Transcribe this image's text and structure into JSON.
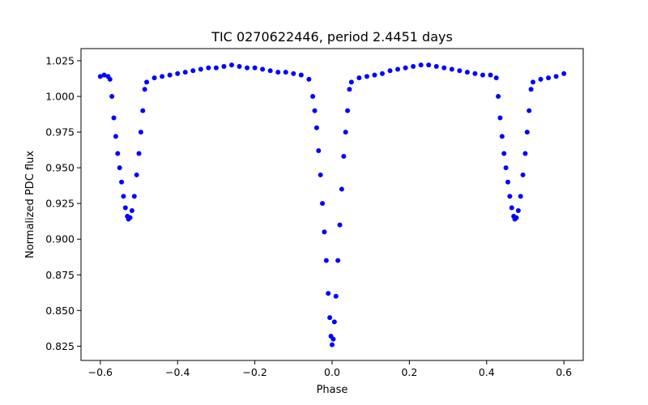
{
  "chart_data": {
    "type": "scatter",
    "title": "TIC 0270622446, period 2.4451 days",
    "xlabel": "Phase",
    "ylabel": "Normalized PDC flux",
    "xlim": [
      -0.65,
      0.65
    ],
    "ylim": [
      0.815,
      1.0335
    ],
    "x_ticks": [
      -0.6,
      -0.4,
      -0.2,
      0.0,
      0.2,
      0.4,
      0.6
    ],
    "x_tick_labels": [
      "−0.6",
      "−0.4",
      "−0.2",
      "0.0",
      "0.2",
      "0.4",
      "0.6"
    ],
    "y_ticks": [
      0.825,
      0.85,
      0.875,
      0.9,
      0.925,
      0.95,
      0.975,
      1.0,
      1.025
    ],
    "y_tick_labels": [
      "0.825",
      "0.850",
      "0.875",
      "0.900",
      "0.925",
      "0.950",
      "0.975",
      "1.000",
      "1.025"
    ],
    "grid": false,
    "marker_color": "#0000ff",
    "series": [
      {
        "points": [
          [
            -0.6,
            1.014
          ],
          [
            -0.59,
            1.015
          ],
          [
            -0.58,
            1.014
          ],
          [
            -0.575,
            1.012
          ],
          [
            -0.57,
            1.0
          ],
          [
            -0.565,
            0.985
          ],
          [
            -0.56,
            0.972
          ],
          [
            -0.555,
            0.96
          ],
          [
            -0.55,
            0.95
          ],
          [
            -0.545,
            0.94
          ],
          [
            -0.54,
            0.93
          ],
          [
            -0.535,
            0.922
          ],
          [
            -0.53,
            0.916
          ],
          [
            -0.527,
            0.914
          ],
          [
            -0.523,
            0.915
          ],
          [
            -0.518,
            0.92
          ],
          [
            -0.512,
            0.93
          ],
          [
            -0.506,
            0.945
          ],
          [
            -0.5,
            0.96
          ],
          [
            -0.495,
            0.975
          ],
          [
            -0.49,
            0.99
          ],
          [
            -0.485,
            1.005
          ],
          [
            -0.48,
            1.01
          ],
          [
            -0.46,
            1.013
          ],
          [
            -0.44,
            1.014
          ],
          [
            -0.42,
            1.015
          ],
          [
            -0.4,
            1.016
          ],
          [
            -0.38,
            1.017
          ],
          [
            -0.36,
            1.018
          ],
          [
            -0.34,
            1.019
          ],
          [
            -0.32,
            1.02
          ],
          [
            -0.3,
            1.02
          ],
          [
            -0.28,
            1.021
          ],
          [
            -0.26,
            1.022
          ],
          [
            -0.24,
            1.021
          ],
          [
            -0.22,
            1.02
          ],
          [
            -0.2,
            1.02
          ],
          [
            -0.18,
            1.019
          ],
          [
            -0.16,
            1.018
          ],
          [
            -0.14,
            1.017
          ],
          [
            -0.12,
            1.017
          ],
          [
            -0.1,
            1.016
          ],
          [
            -0.08,
            1.015
          ],
          [
            -0.06,
            1.012
          ],
          [
            -0.05,
            1.0
          ],
          [
            -0.045,
            0.99
          ],
          [
            -0.04,
            0.978
          ],
          [
            -0.035,
            0.962
          ],
          [
            -0.03,
            0.945
          ],
          [
            -0.025,
            0.925
          ],
          [
            -0.02,
            0.905
          ],
          [
            -0.015,
            0.885
          ],
          [
            -0.01,
            0.862
          ],
          [
            -0.006,
            0.845
          ],
          [
            -0.003,
            0.832
          ],
          [
            0.0,
            0.826
          ],
          [
            0.003,
            0.83
          ],
          [
            0.006,
            0.842
          ],
          [
            0.01,
            0.86
          ],
          [
            0.015,
            0.885
          ],
          [
            0.02,
            0.91
          ],
          [
            0.025,
            0.935
          ],
          [
            0.03,
            0.958
          ],
          [
            0.035,
            0.975
          ],
          [
            0.04,
            0.99
          ],
          [
            0.045,
            1.005
          ],
          [
            0.05,
            1.01
          ],
          [
            0.07,
            1.013
          ],
          [
            0.09,
            1.014
          ],
          [
            0.11,
            1.015
          ],
          [
            0.13,
            1.016
          ],
          [
            0.15,
            1.018
          ],
          [
            0.17,
            1.019
          ],
          [
            0.19,
            1.02
          ],
          [
            0.21,
            1.021
          ],
          [
            0.23,
            1.022
          ],
          [
            0.25,
            1.022
          ],
          [
            0.27,
            1.021
          ],
          [
            0.29,
            1.02
          ],
          [
            0.31,
            1.019
          ],
          [
            0.33,
            1.018
          ],
          [
            0.35,
            1.017
          ],
          [
            0.37,
            1.016
          ],
          [
            0.39,
            1.015
          ],
          [
            0.41,
            1.015
          ],
          [
            0.425,
            1.013
          ],
          [
            0.43,
            1.0
          ],
          [
            0.435,
            0.985
          ],
          [
            0.44,
            0.972
          ],
          [
            0.445,
            0.96
          ],
          [
            0.45,
            0.95
          ],
          [
            0.455,
            0.94
          ],
          [
            0.46,
            0.93
          ],
          [
            0.465,
            0.922
          ],
          [
            0.47,
            0.916
          ],
          [
            0.473,
            0.914
          ],
          [
            0.477,
            0.915
          ],
          [
            0.482,
            0.92
          ],
          [
            0.488,
            0.93
          ],
          [
            0.494,
            0.945
          ],
          [
            0.5,
            0.96
          ],
          [
            0.505,
            0.975
          ],
          [
            0.51,
            0.99
          ],
          [
            0.515,
            1.005
          ],
          [
            0.52,
            1.01
          ],
          [
            0.54,
            1.012
          ],
          [
            0.56,
            1.013
          ],
          [
            0.58,
            1.014
          ],
          [
            0.6,
            1.016
          ]
        ]
      }
    ]
  }
}
